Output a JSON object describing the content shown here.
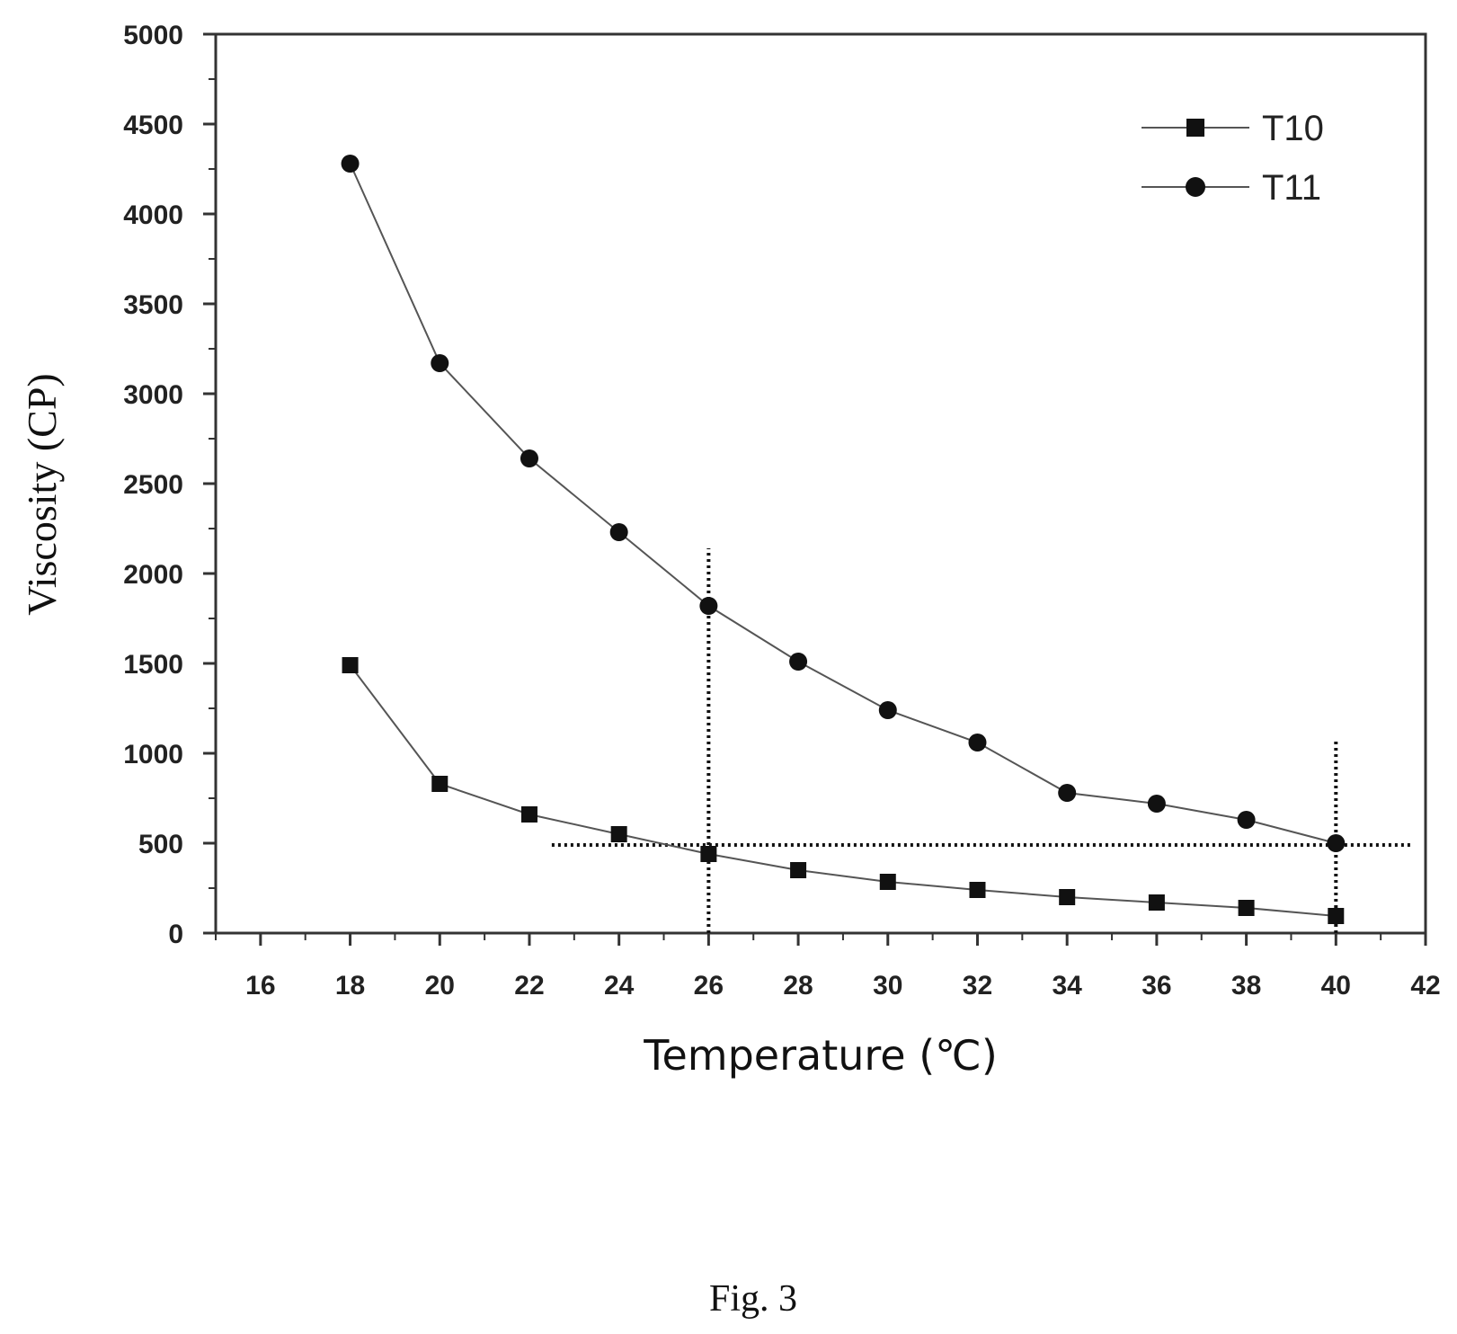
{
  "chart_data": {
    "type": "line",
    "xlabel": "Temperature (℃)",
    "ylabel": "Viscosity (CP)",
    "xlim": [
      15,
      42
    ],
    "ylim": [
      0,
      5000
    ],
    "x_ticks": [
      16,
      18,
      20,
      22,
      24,
      26,
      28,
      30,
      32,
      34,
      36,
      38,
      40,
      42
    ],
    "y_ticks": [
      0,
      500,
      1000,
      1500,
      2000,
      2500,
      3000,
      3500,
      4000,
      4500,
      5000
    ],
    "grid": false,
    "legend_position": "top-right",
    "series": [
      {
        "name": "T10",
        "marker": "square",
        "color": "#111111",
        "x": [
          18,
          20,
          22,
          24,
          26,
          28,
          30,
          32,
          34,
          36,
          38,
          40
        ],
        "y": [
          1490,
          830,
          660,
          550,
          440,
          350,
          285,
          240,
          200,
          170,
          140,
          95
        ]
      },
      {
        "name": "T11",
        "marker": "circle",
        "color": "#111111",
        "x": [
          18,
          20,
          22,
          24,
          26,
          28,
          30,
          32,
          34,
          36,
          38,
          40
        ],
        "y": [
          4280,
          3170,
          2640,
          2230,
          1820,
          1510,
          1240,
          1060,
          780,
          720,
          630,
          500
        ]
      }
    ],
    "reference_lines": [
      {
        "orientation": "vertical",
        "x": 26,
        "y_from": 0,
        "y_to": 2140
      },
      {
        "orientation": "vertical",
        "x": 40,
        "y_from": 0,
        "y_to": 1070
      },
      {
        "orientation": "horizontal",
        "y": 490,
        "x_from": 22.5,
        "x_to": 41.7
      }
    ]
  },
  "caption": "Fig. 3"
}
